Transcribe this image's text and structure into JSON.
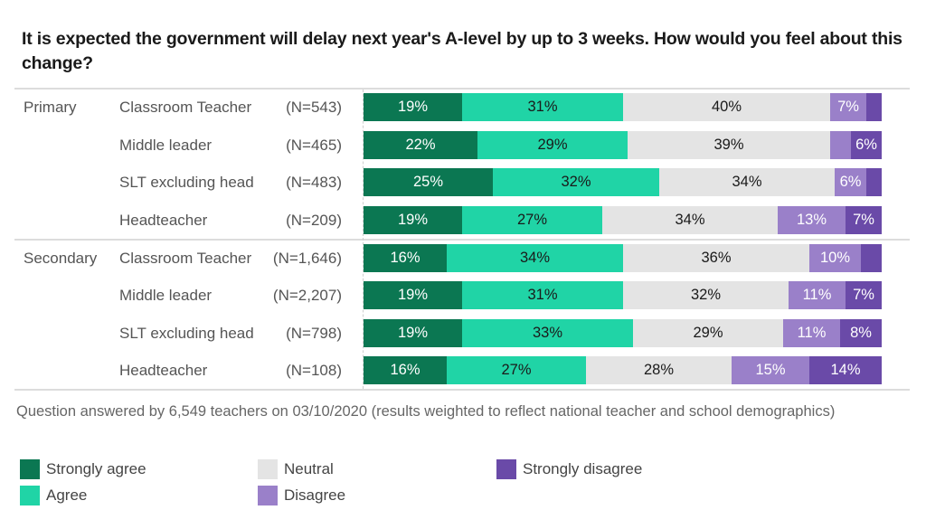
{
  "title": "It is expected the government will delay next year's A-level by up to 3 weeks. How would you feel about this change?",
  "footnote": "Question answered by 6,549 teachers on 03/10/2020 (results weighted to reflect national teacher and school demographics)",
  "colors": {
    "Strongly agree": "#0b7752",
    "Agree": "#20d4a6",
    "Neutral": "#e4e4e4",
    "Disagree": "#9a80c9",
    "Strongly disagree": "#6a4aa8"
  },
  "label_colors": {
    "Strongly agree": "#ffffff",
    "Agree": "#1a1a1a",
    "Neutral": "#1a1a1a",
    "Disagree": "#ffffff",
    "Strongly disagree": "#ffffff"
  },
  "legend": [
    {
      "label": "Strongly agree",
      "color": "#0b7752"
    },
    {
      "label": "Agree",
      "color": "#20d4a6"
    },
    {
      "label": "Neutral",
      "color": "#e4e4e4"
    },
    {
      "label": "Disagree",
      "color": "#9a80c9"
    },
    {
      "label": "Strongly disagree",
      "color": "#6a4aa8"
    }
  ],
  "chart_data": {
    "type": "bar",
    "orientation": "horizontal",
    "stacked": true,
    "normalized": true,
    "title": "It is expected the government will delay next year's A-level by up to 3 weeks. How would you feel about this change?",
    "xlabel": "",
    "ylabel": "",
    "xlim": [
      0,
      100
    ],
    "unit": "%",
    "grid": false,
    "legend_position": "bottom",
    "groups": [
      "Primary",
      "Secondary"
    ],
    "categories": [
      {
        "group": "Primary",
        "label": "Classroom Teacher",
        "n": "(N=543)"
      },
      {
        "group": "Primary",
        "label": "Middle leader",
        "n": "(N=465)"
      },
      {
        "group": "Primary",
        "label": "SLT excluding head",
        "n": "(N=483)"
      },
      {
        "group": "Primary",
        "label": "Headteacher",
        "n": "(N=209)"
      },
      {
        "group": "Secondary",
        "label": "Classroom Teacher",
        "n": "(N=1,646)"
      },
      {
        "group": "Secondary",
        "label": "Middle leader",
        "n": "(N=2,207)"
      },
      {
        "group": "Secondary",
        "label": "SLT excluding head",
        "n": "(N=798)"
      },
      {
        "group": "Secondary",
        "label": "Headteacher",
        "n": "(N=108)"
      }
    ],
    "series": [
      {
        "name": "Strongly agree",
        "values": [
          19,
          22,
          25,
          19,
          16,
          19,
          19,
          16
        ],
        "labels": [
          "19%",
          "22%",
          "25%",
          "19%",
          "16%",
          "19%",
          "19%",
          "16%"
        ]
      },
      {
        "name": "Agree",
        "values": [
          31,
          29,
          32,
          27,
          34,
          31,
          33,
          27
        ],
        "labels": [
          "31%",
          "29%",
          "32%",
          "27%",
          "34%",
          "31%",
          "33%",
          "27%"
        ]
      },
      {
        "name": "Neutral",
        "values": [
          40,
          39,
          34,
          34,
          36,
          32,
          29,
          28
        ],
        "labels": [
          "40%",
          "39%",
          "34%",
          "34%",
          "36%",
          "32%",
          "29%",
          "28%"
        ]
      },
      {
        "name": "Disagree",
        "values": [
          7,
          4,
          6,
          13,
          10,
          11,
          11,
          15
        ],
        "labels": [
          "7%",
          "",
          "6%",
          "13%",
          "10%",
          "11%",
          "11%",
          "15%"
        ]
      },
      {
        "name": "Strongly disagree",
        "values": [
          3,
          6,
          3,
          7,
          4,
          7,
          8,
          14
        ],
        "labels": [
          "",
          "6%",
          "",
          "7%",
          "",
          "7%",
          "8%",
          "14%"
        ]
      }
    ]
  }
}
